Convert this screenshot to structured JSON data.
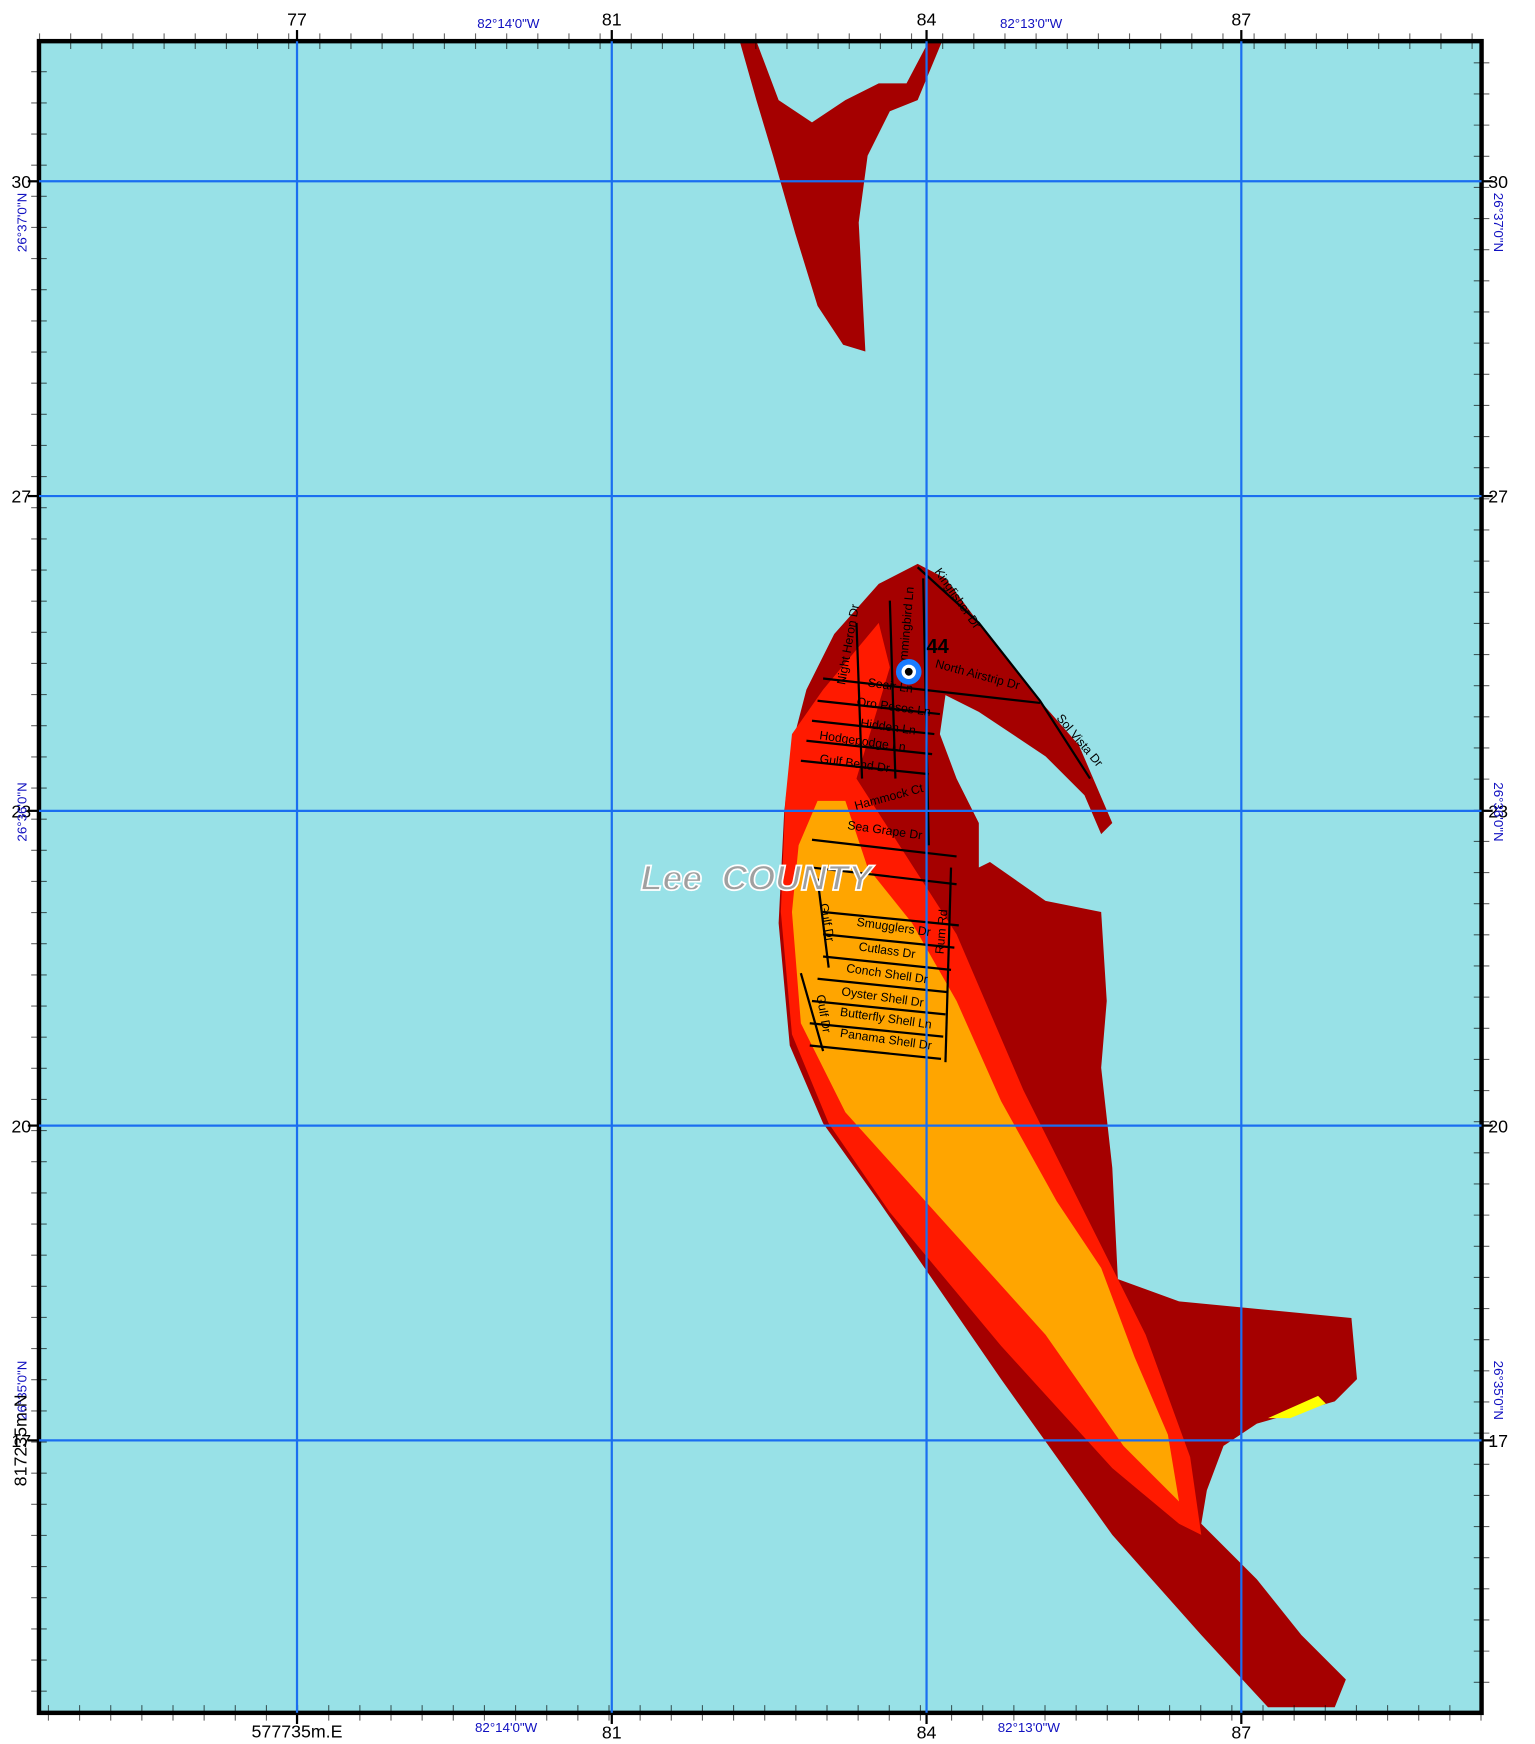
{
  "map": {
    "grid": {
      "x_labels": [
        "77",
        "81",
        "84",
        "87"
      ],
      "y_labels": [
        "30",
        "27",
        "23",
        "20",
        "17"
      ]
    },
    "lon_labels": [
      "82°14'0\"W",
      "82°13'0\"W"
    ],
    "lat_labels": [
      "26°37'0\"N",
      "26°36'0\"N",
      "26°35'0\"N"
    ],
    "easting": "577735m.E",
    "northing": "817235m.N",
    "county": "Lee  COUNTY",
    "marker_label": "44",
    "streets": [
      "Kingfisher Dr",
      "Hummingbird Ln",
      "Night Heron Dr",
      "Seair Ln",
      "North Airstrip Dr",
      "Oro Pesos Ln",
      "Hidden Ln",
      "Hodgepodge Ln",
      "Gulf Bend Dr",
      "Sol Vista Dr",
      "Hammock Ct",
      "Sea Grape Dr",
      "Gulf Dr",
      "Smugglers Dr",
      "Rum Rd",
      "Cutlass Dr",
      "Conch Shell Dr",
      "Oyster Shell Dr",
      "Butterfly Shell Ln",
      "Panama Shell Dr"
    ]
  }
}
